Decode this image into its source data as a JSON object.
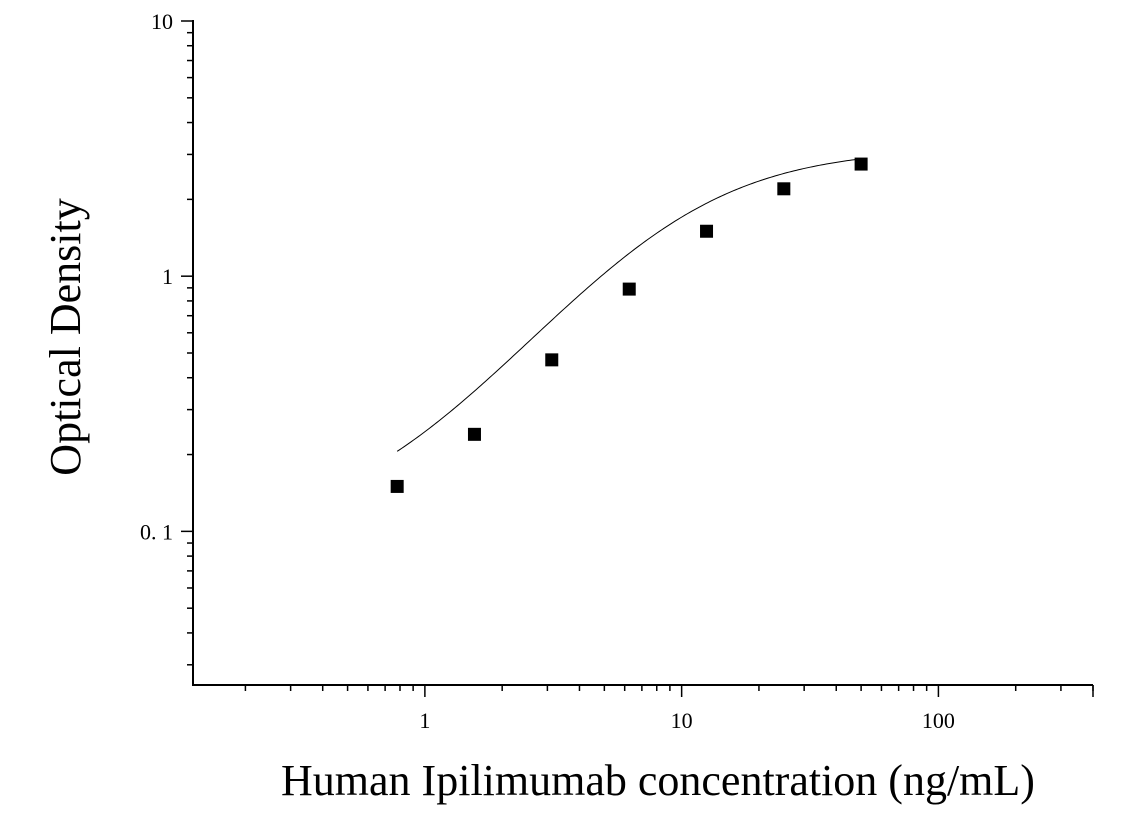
{
  "chart_data": {
    "type": "scatter",
    "title": "",
    "xlabel": "Human Ipilimumab concentration (ng/mL)",
    "ylabel": "Optical Density",
    "x_scale": "log",
    "y_scale": "log",
    "xlim": [
      0.125,
      400
    ],
    "ylim": [
      0.025,
      10
    ],
    "x_ticks": [
      {
        "value": 1,
        "label": "1"
      },
      {
        "value": 10,
        "label": "10"
      },
      {
        "value": 100,
        "label": "100"
      }
    ],
    "y_ticks": [
      {
        "value": 0.1,
        "label": "0. 1"
      },
      {
        "value": 1,
        "label": "1"
      },
      {
        "value": 10,
        "label": "10"
      }
    ],
    "grid": false,
    "legend": "none",
    "series": [
      {
        "marker": "square",
        "color": "#000000",
        "points": [
          {
            "x": 0.78,
            "y": 0.15
          },
          {
            "x": 1.56,
            "y": 0.24
          },
          {
            "x": 3.12,
            "y": 0.47
          },
          {
            "x": 6.25,
            "y": 0.89
          },
          {
            "x": 12.5,
            "y": 1.5
          },
          {
            "x": 25,
            "y": 2.2
          },
          {
            "x": 50,
            "y": 2.75
          }
        ]
      }
    ],
    "fit_curve": {
      "type": "4PL",
      "bottom": 0.1,
      "top": 3.18,
      "ec50": 9.4,
      "hill": 1.34,
      "x_range": [
        0.78,
        50
      ],
      "color": "#000000"
    }
  }
}
